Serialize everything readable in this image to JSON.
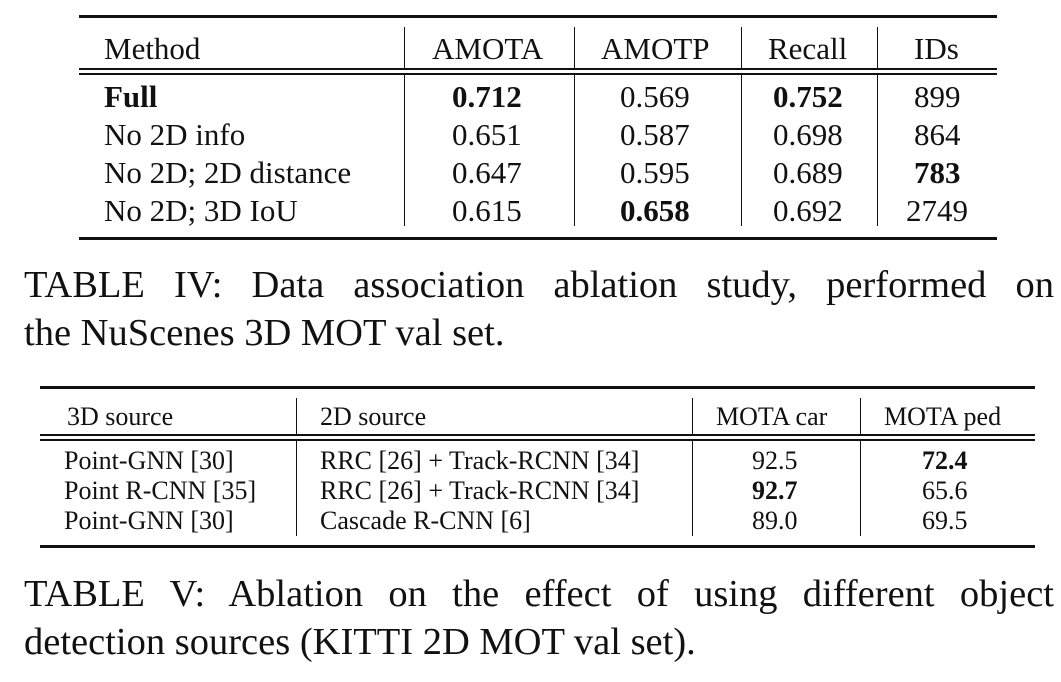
{
  "table4": {
    "headers": [
      "Method",
      "AMOTA",
      "AMOTP",
      "Recall",
      "IDs"
    ],
    "rows": [
      {
        "method": "Full",
        "amota": "0.712",
        "amotp": "0.569",
        "recall": "0.752",
        "ids": "899"
      },
      {
        "method": "No 2D info",
        "amota": "0.651",
        "amotp": "0.587",
        "recall": "0.698",
        "ids": "864"
      },
      {
        "method": "No 2D; 2D distance",
        "amota": "0.647",
        "amotp": "0.595",
        "recall": "0.689",
        "ids": "783"
      },
      {
        "method": "No 2D; 3D IoU",
        "amota": "0.615",
        "amotp": "0.658",
        "recall": "0.692",
        "ids": "2749"
      }
    ],
    "caption_line1": "TABLE IV: Data association ablation study, performed on",
    "caption_line2": "the NuScenes 3D MOT val set."
  },
  "table5": {
    "headers": [
      "3D source",
      "2D source",
      "MOTA car",
      "MOTA ped"
    ],
    "rows": [
      {
        "src3d": "Point-GNN [30]",
        "src2d": "RRC [26] + Track-RCNN [34]",
        "car": "92.5",
        "ped": "72.4"
      },
      {
        "src3d": "Point R-CNN [35]",
        "src2d": "RRC [26] + Track-RCNN [34]",
        "car": "92.7",
        "ped": "65.6"
      },
      {
        "src3d": "Point-GNN [30]",
        "src2d": "Cascade R-CNN [6]",
        "car": "89.0",
        "ped": "69.5"
      }
    ],
    "caption_line1": "TABLE V: Ablation on the effect of using different object",
    "caption_line2": "detection sources (KITTI 2D MOT val set)."
  }
}
